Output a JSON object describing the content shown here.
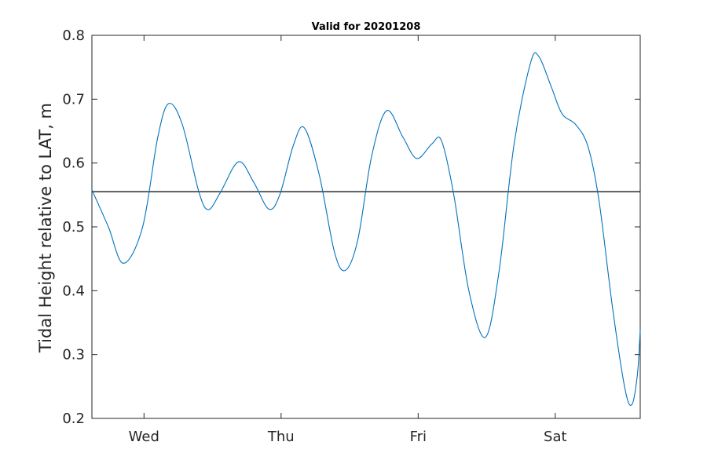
{
  "chart_data": {
    "type": "line",
    "title": "Valid for 20201208",
    "xlabel": "",
    "ylabel": "Tidal Height relative to LAT, m",
    "ylim": [
      0.2,
      0.8
    ],
    "yticks": [
      "0.2",
      "0.3",
      "0.4",
      "0.5",
      "0.6",
      "0.7",
      "0.8"
    ],
    "xlim": [
      0,
      4
    ],
    "xticks": [
      {
        "value": 0.38,
        "label": "Wed"
      },
      {
        "value": 1.38,
        "label": "Thu"
      },
      {
        "value": 2.38,
        "label": "Fri"
      },
      {
        "value": 3.38,
        "label": "Sat"
      }
    ],
    "grid": false,
    "reference_line": {
      "y": 0.555,
      "color": "#000000"
    },
    "series": [
      {
        "color": "#0072BD",
        "points": [
          [
            0.0,
            0.558
          ],
          [
            0.12,
            0.5
          ],
          [
            0.23,
            0.443
          ],
          [
            0.37,
            0.5
          ],
          [
            0.48,
            0.64
          ],
          [
            0.56,
            0.693
          ],
          [
            0.66,
            0.66
          ],
          [
            0.78,
            0.555
          ],
          [
            0.85,
            0.527
          ],
          [
            0.94,
            0.555
          ],
          [
            1.07,
            0.602
          ],
          [
            1.18,
            0.57
          ],
          [
            1.29,
            0.528
          ],
          [
            1.37,
            0.55
          ],
          [
            1.47,
            0.628
          ],
          [
            1.55,
            0.655
          ],
          [
            1.66,
            0.58
          ],
          [
            1.77,
            0.46
          ],
          [
            1.85,
            0.432
          ],
          [
            1.94,
            0.48
          ],
          [
            2.04,
            0.61
          ],
          [
            2.15,
            0.682
          ],
          [
            2.27,
            0.64
          ],
          [
            2.37,
            0.607
          ],
          [
            2.48,
            0.63
          ],
          [
            2.55,
            0.635
          ],
          [
            2.64,
            0.55
          ],
          [
            2.75,
            0.4
          ],
          [
            2.87,
            0.327
          ],
          [
            2.97,
            0.43
          ],
          [
            3.08,
            0.63
          ],
          [
            3.2,
            0.757
          ],
          [
            3.26,
            0.767
          ],
          [
            3.35,
            0.72
          ],
          [
            3.43,
            0.677
          ],
          [
            3.53,
            0.66
          ],
          [
            3.62,
            0.625
          ],
          [
            3.7,
            0.54
          ],
          [
            3.8,
            0.37
          ],
          [
            3.89,
            0.245
          ],
          [
            3.94,
            0.222
          ],
          [
            3.98,
            0.27
          ],
          [
            4.0,
            0.338
          ]
        ]
      }
    ]
  }
}
